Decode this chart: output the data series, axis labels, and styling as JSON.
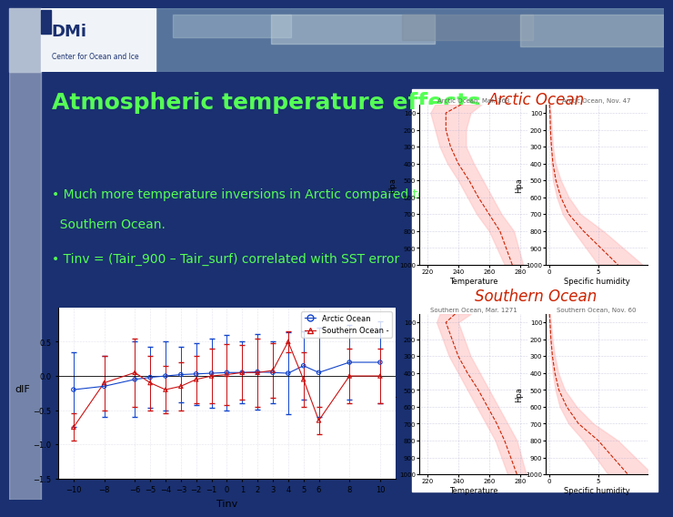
{
  "title": "Atmospheric temperature effects",
  "title_color": "#55ff55",
  "title_fontsize": 18,
  "slide_bg": "#1a3070",
  "header_bg": "#1a3070",
  "header_photo_bg": "#7090b0",
  "sidebar_color": "#b0bcd0",
  "bullet1_line1": "• Much more temperature inversions in Arctic compared to",
  "bullet1_line2": "  Southern Ocean.",
  "bullet2": "• Tinv = (Tair_900 – Tair_surf) correlated with SST error",
  "bullet_color": "#55ff55",
  "bullet_fontsize": 10,
  "arctic_label": "Arctic Ocean",
  "southern_label": "Southern Ocean",
  "label_color": "#cc2200",
  "label_fontsize": 12,
  "pressure_ticks": [
    100,
    200,
    300,
    400,
    500,
    600,
    700,
    800,
    900,
    1000
  ],
  "temp_ticks": [
    220,
    240,
    260,
    280
  ],
  "hum_ticks": [
    0,
    5
  ],
  "arctic_temp_subtitle": "Arctic Ocean, Mar. 363",
  "arctic_hum_subtitle": "Arctic Ocean, Nov. 47",
  "southern_temp_subtitle": "Southern Ocean, Mar. 1271",
  "southern_hum_subtitle": "Southern Ocean, Nov. 60",
  "arctic_temp_x": [
    242,
    232,
    232,
    235,
    240,
    247,
    253,
    260,
    267,
    275
  ],
  "arctic_temp_y": [
    50,
    100,
    200,
    300,
    400,
    500,
    600,
    700,
    800,
    1000
  ],
  "arctic_temp_fill_lo": [
    225,
    222,
    225,
    228,
    233,
    240,
    246,
    252,
    260,
    270
  ],
  "arctic_temp_fill_hi": [
    255,
    248,
    245,
    245,
    250,
    256,
    262,
    268,
    276,
    282
  ],
  "arctic_hum_x": [
    0.05,
    0.1,
    0.15,
    0.25,
    0.4,
    0.7,
    1.2,
    2.0,
    3.5,
    7.0
  ],
  "arctic_hum_y": [
    50,
    100,
    200,
    300,
    400,
    500,
    600,
    700,
    800,
    1000
  ],
  "arctic_hum_fill_lo": [
    0.02,
    0.05,
    0.08,
    0.15,
    0.25,
    0.4,
    0.8,
    1.4,
    2.5,
    5.0
  ],
  "arctic_hum_fill_hi": [
    0.08,
    0.18,
    0.28,
    0.4,
    0.65,
    1.2,
    2.0,
    3.2,
    5.5,
    9.5
  ],
  "southern_temp_x": [
    238,
    232,
    236,
    240,
    246,
    253,
    259,
    265,
    270,
    278
  ],
  "southern_temp_y": [
    50,
    100,
    200,
    300,
    400,
    500,
    600,
    700,
    800,
    1000
  ],
  "southern_temp_fill_lo": [
    228,
    226,
    230,
    234,
    240,
    246,
    252,
    258,
    264,
    272
  ],
  "southern_temp_fill_hi": [
    248,
    240,
    244,
    248,
    254,
    260,
    266,
    272,
    278,
    284
  ],
  "southern_hum_x": [
    0.05,
    0.1,
    0.2,
    0.35,
    0.6,
    1.0,
    1.8,
    3.0,
    5.0,
    8.0
  ],
  "southern_hum_y": [
    50,
    100,
    200,
    300,
    400,
    500,
    600,
    700,
    800,
    1000
  ],
  "southern_hum_fill_lo": [
    0.02,
    0.05,
    0.12,
    0.2,
    0.38,
    0.65,
    1.1,
    2.0,
    3.5,
    6.0
  ],
  "southern_hum_fill_hi": [
    0.1,
    0.2,
    0.35,
    0.6,
    0.95,
    1.6,
    2.8,
    4.5,
    7.0,
    10.5
  ],
  "curve_color": "#cc2200",
  "fill_color": "#ffbbbb",
  "fill_alpha": 0.5,
  "subplot_bg": "#ffffff",
  "grid_color": "#aaaacc",
  "axis_label_fontsize": 6,
  "tick_fontsize": 5,
  "subplot_title_fontsize": 5,
  "scatter_arctic_x": [
    -10,
    -8,
    -6,
    -5,
    -4,
    -3,
    -2,
    -1,
    0,
    1,
    2,
    3,
    4,
    5,
    6,
    8,
    10
  ],
  "scatter_arctic_y": [
    -0.2,
    -0.15,
    -0.05,
    -0.02,
    0.0,
    0.02,
    0.03,
    0.04,
    0.05,
    0.05,
    0.06,
    0.05,
    0.04,
    0.15,
    0.05,
    0.2,
    0.2
  ],
  "scatter_arctic_yerr": [
    0.55,
    0.45,
    0.55,
    0.45,
    0.5,
    0.4,
    0.45,
    0.5,
    0.55,
    0.45,
    0.55,
    0.45,
    0.6,
    0.5,
    0.65,
    0.55,
    0.6
  ],
  "scatter_south_x": [
    -10,
    -8,
    -6,
    -5,
    -4,
    -3,
    -2,
    -1,
    0,
    1,
    2,
    3,
    4,
    5,
    6,
    8,
    10
  ],
  "scatter_south_y": [
    -0.75,
    -0.1,
    0.05,
    -0.1,
    -0.2,
    -0.15,
    -0.05,
    0.0,
    0.02,
    0.05,
    0.05,
    0.08,
    0.5,
    -0.05,
    -0.65,
    0.0,
    0.0
  ],
  "scatter_south_yerr": [
    0.2,
    0.4,
    0.5,
    0.4,
    0.35,
    0.35,
    0.35,
    0.4,
    0.45,
    0.4,
    0.5,
    0.4,
    0.15,
    0.4,
    0.2,
    0.4,
    0.4
  ],
  "scatter_xlim": [
    -11,
    11
  ],
  "scatter_ylim": [
    -1.5,
    1.0
  ],
  "scatter_xticks": [
    -10,
    -8,
    -6,
    -5,
    -4,
    -3,
    -2,
    -1,
    0,
    1,
    2,
    3,
    4,
    5,
    6,
    8,
    10
  ],
  "scatter_yticks": [
    0.5,
    0,
    -0.5,
    -1,
    -1.5
  ],
  "scatter_xlabel": "Tinv",
  "scatter_ylabel": "dIF",
  "scatter_arctic_color": "#1144cc",
  "scatter_south_color": "#cc1111"
}
